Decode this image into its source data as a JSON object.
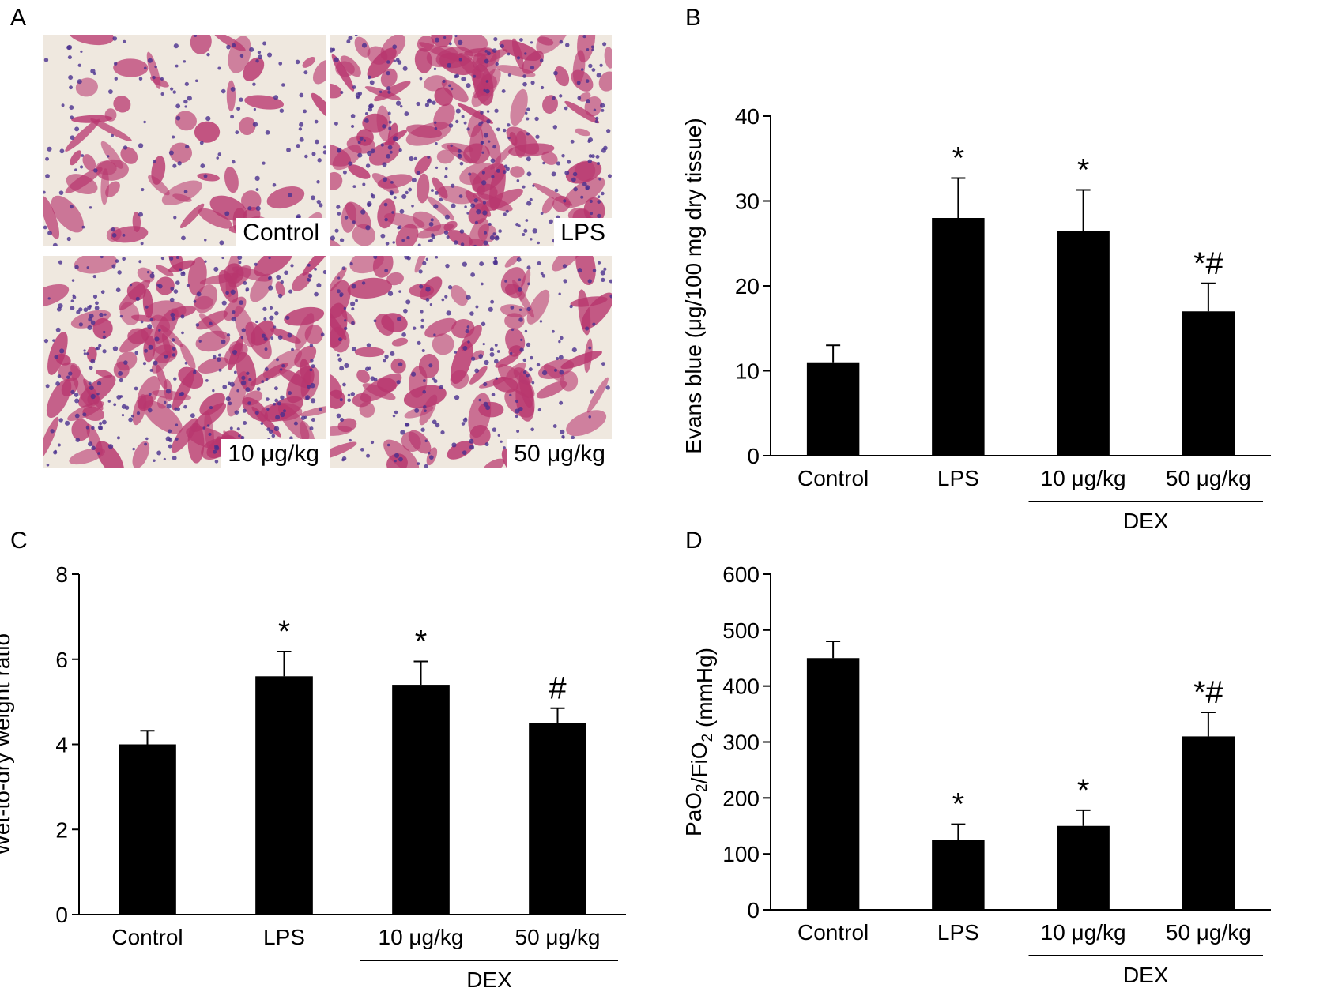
{
  "panels": {
    "a": "A",
    "b": "B",
    "c": "C",
    "d": "D"
  },
  "micrographs": [
    {
      "label": "Control",
      "tissue": "sparse"
    },
    {
      "label": "LPS",
      "tissue": "dense"
    },
    {
      "label": "10 μg/kg",
      "tissue": "dense"
    },
    {
      "label": "50 μg/kg",
      "tissue": "medium"
    }
  ],
  "colors": {
    "bar": "#000000",
    "tissue": "#b8366e",
    "nuclei": "#4a2f8f",
    "background": "#efe8df"
  },
  "chart_data": [
    {
      "type": "bar",
      "panel": "B",
      "categories": [
        "Control",
        "LPS",
        "10 μg/kg",
        "50 μg/kg"
      ],
      "values": [
        11,
        28,
        26.5,
        17
      ],
      "errors": [
        2,
        4.7,
        4.8,
        3.3
      ],
      "significance": [
        "",
        "*",
        "*",
        "*#"
      ],
      "ylabel": "Evans blue (μg/100 mg dry tissue)",
      "ylim": [
        0,
        40
      ],
      "yticks": [
        0,
        10,
        20,
        30,
        40
      ],
      "group_label": "DEX"
    },
    {
      "type": "bar",
      "panel": "C",
      "categories": [
        "Control",
        "LPS",
        "10 μg/kg",
        "50 μg/kg"
      ],
      "values": [
        4.0,
        5.6,
        5.4,
        4.5
      ],
      "errors": [
        0.32,
        0.58,
        0.55,
        0.35
      ],
      "significance": [
        "",
        "*",
        "*",
        "#"
      ],
      "ylabel": "Wet-to-dry weight ratio",
      "ylim": [
        0,
        8
      ],
      "yticks": [
        0,
        2,
        4,
        6,
        8
      ],
      "group_label": "DEX"
    },
    {
      "type": "bar",
      "panel": "D",
      "categories": [
        "Control",
        "LPS",
        "10 μg/kg",
        "50 μg/kg"
      ],
      "values": [
        450,
        125,
        150,
        310
      ],
      "errors": [
        30,
        28,
        28,
        43
      ],
      "significance": [
        "",
        "*",
        "*",
        "*#"
      ],
      "ylabel": "PaO2/FiO2 (mmHg)",
      "ylim": [
        0,
        600
      ],
      "yticks": [
        0,
        100,
        200,
        300,
        400,
        500,
        600
      ],
      "group_label": "DEX"
    }
  ]
}
